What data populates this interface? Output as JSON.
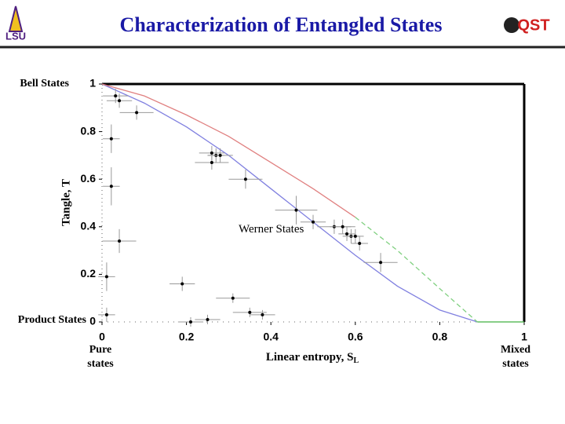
{
  "logos": {
    "left": "LSU",
    "right": "QST"
  },
  "chart_data": {
    "type": "scatter",
    "title": "Characterization of Entangled States",
    "x_label": "Linear entropy, S",
    "x_label_subscript": "L",
    "y_label": "Tangle, T",
    "annotations": {
      "top_left": "Bell States",
      "bottom_left": "Product States",
      "pure": [
        "Pure",
        "states"
      ],
      "mixed": [
        "Mixed",
        "states"
      ]
    },
    "xlim": [
      0,
      1
    ],
    "ylim": [
      0,
      1
    ],
    "xticks": [
      0,
      0.2,
      0.4,
      0.6,
      0.8,
      1
    ],
    "yticks": [
      0,
      0.2,
      0.4,
      0.6,
      0.8,
      1
    ],
    "series": [
      {
        "name": "Werner States",
        "type": "line",
        "color": "#8080e0",
        "x": [
          0,
          0.1,
          0.2,
          0.3,
          0.4,
          0.5,
          0.6,
          0.7,
          0.8,
          0.889
        ],
        "values": [
          1,
          0.92,
          0.82,
          0.7,
          0.56,
          0.42,
          0.28,
          0.15,
          0.05,
          0
        ]
      },
      {
        "type": "line",
        "color": "#e08080",
        "x": [
          0,
          0.1,
          0.2,
          0.3,
          0.4,
          0.5,
          0.6
        ],
        "values": [
          1,
          0.95,
          0.87,
          0.78,
          0.67,
          0.56,
          0.44
        ]
      },
      {
        "type": "line",
        "color": "#80d080",
        "dashed": true,
        "x": [
          0.6,
          0.7,
          0.8,
          0.889
        ],
        "values": [
          0.44,
          0.3,
          0.14,
          0
        ]
      },
      {
        "type": "line",
        "color": "#40b040",
        "x": [
          0.889,
          1
        ],
        "values": [
          0,
          0
        ]
      },
      {
        "type": "scatter",
        "color": "#000000",
        "x": [
          0.032,
          0.041,
          0.082,
          0.022,
          0.022,
          0.041,
          0.011,
          0.011,
          0.19,
          0.21,
          0.25,
          0.31,
          0.35,
          0.38,
          0.26,
          0.27,
          0.28,
          0.26,
          0.34,
          0.46,
          0.5,
          0.55,
          0.57,
          0.58,
          0.59,
          0.6,
          0.61,
          0.66
        ],
        "values": [
          0.95,
          0.93,
          0.88,
          0.77,
          0.57,
          0.34,
          0.19,
          0.03,
          0.16,
          0,
          0.01,
          0.1,
          0.04,
          0.03,
          0.71,
          0.7,
          0.7,
          0.67,
          0.6,
          0.47,
          0.42,
          0.4,
          0.4,
          0.37,
          0.36,
          0.36,
          0.33,
          0.25
        ],
        "xerr": [
          0.03,
          0.03,
          0.04,
          0.02,
          0.02,
          0.04,
          0.02,
          0.02,
          0.03,
          0.03,
          0.03,
          0.04,
          0.04,
          0.03,
          0.03,
          0.02,
          0.03,
          0.04,
          0.04,
          0.05,
          0.03,
          0.04,
          0.03,
          0.02,
          0.02,
          0.02,
          0.02,
          0.04
        ],
        "yerr": [
          0.03,
          0.03,
          0.03,
          0.06,
          0.08,
          0.05,
          0.06,
          0.03,
          0.03,
          0.02,
          0.02,
          0.02,
          0.02,
          0.02,
          0.03,
          0.03,
          0.03,
          0.03,
          0.04,
          0.06,
          0.03,
          0.03,
          0.03,
          0.03,
          0.03,
          0.03,
          0.03,
          0.04
        ]
      }
    ]
  }
}
